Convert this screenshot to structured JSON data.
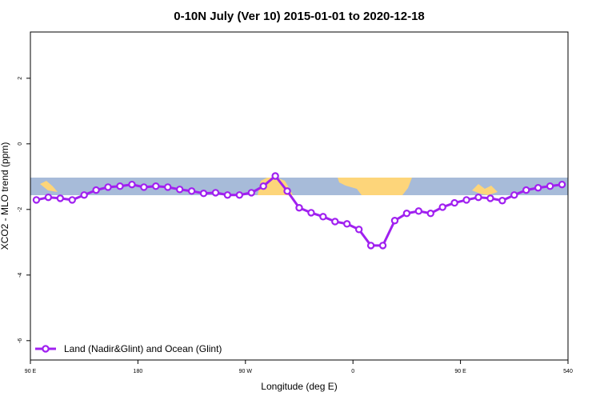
{
  "chart_data": {
    "type": "line",
    "title": "0-10N July (Ver 10)   2015-01-01 to 2020-12-18",
    "x_label": "Longitude (deg E)",
    "y_label": "XCO2 - MLO trend (ppm)",
    "x": [
      95,
      105,
      115,
      125,
      135,
      145,
      155,
      165,
      175,
      185,
      195,
      205,
      215,
      225,
      235,
      245,
      255,
      265,
      275,
      285,
      295,
      305,
      315,
      325,
      335,
      345,
      355,
      365,
      375,
      385,
      395,
      405,
      415,
      425,
      435,
      445,
      455,
      465,
      475,
      485,
      495,
      505,
      515,
      525,
      535
    ],
    "series": [
      {
        "name": "Land (Nadir&Glint) and Ocean (Glint)",
        "color": "#a020f0",
        "values": [
          -1.71,
          -1.63,
          -1.66,
          -1.71,
          -1.56,
          -1.41,
          -1.32,
          -1.29,
          -1.24,
          -1.32,
          -1.29,
          -1.32,
          -1.39,
          -1.44,
          -1.51,
          -1.49,
          -1.56,
          -1.56,
          -1.49,
          -1.29,
          -0.98,
          -1.44,
          -1.95,
          -2.1,
          -2.22,
          -2.37,
          -2.44,
          -2.61,
          -3.1,
          -3.1,
          -2.34,
          -2.12,
          -2.05,
          -2.12,
          -1.93,
          -1.8,
          -1.71,
          -1.63,
          -1.66,
          -1.73,
          -1.56,
          -1.41,
          -1.34,
          -1.29,
          -1.24
        ]
      }
    ],
    "xlim": [
      90,
      540
    ],
    "xticks": [
      {
        "value": 90,
        "label": "90 E"
      },
      180,
      {
        "value": 270,
        "label": "90 W"
      },
      {
        "value": 360,
        "label": "0"
      },
      {
        "value": 450,
        "label": "90 E"
      },
      540
    ],
    "ylim": [
      -6.59,
      3.41
    ],
    "yticks": [
      -6,
      -4,
      -2,
      0,
      2
    ],
    "legend": "bottom-left"
  }
}
